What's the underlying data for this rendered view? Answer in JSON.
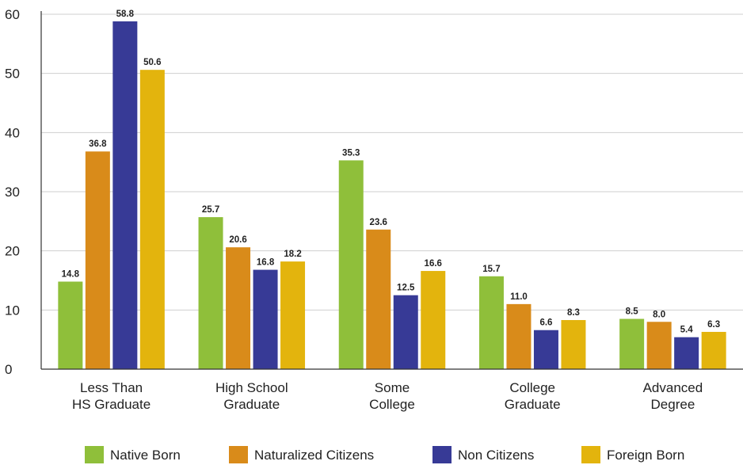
{
  "chart_data": {
    "type": "bar",
    "title": "",
    "xlabel": "",
    "ylabel": "",
    "ylim": [
      0,
      60
    ],
    "yticks": [
      "0",
      "10",
      "20",
      "30",
      "40",
      "50",
      "60"
    ],
    "grid": true,
    "legend_position": "bottom",
    "categories": [
      [
        "Less Than",
        "HS Graduate"
      ],
      [
        "High School",
        "Graduate"
      ],
      [
        "Some",
        "College"
      ],
      [
        "College",
        "Graduate"
      ],
      [
        "Advanced",
        "Degree"
      ]
    ],
    "series": [
      {
        "name": "Native Born",
        "color": "#8fbf3a",
        "values": [
          14.8,
          25.7,
          35.3,
          15.7,
          8.5
        ],
        "labels": [
          "14.8",
          "25.7",
          "35.3",
          "15.7",
          "8.5"
        ]
      },
      {
        "name": "Naturalized Citizens",
        "color": "#d98b1a",
        "values": [
          36.8,
          20.6,
          23.6,
          11.0,
          8.0
        ],
        "labels": [
          "36.8",
          "20.6",
          "23.6",
          "11.0",
          "8.0"
        ]
      },
      {
        "name": "Non Citizens",
        "color": "#373a96",
        "values": [
          58.8,
          16.8,
          12.5,
          6.6,
          5.4
        ],
        "labels": [
          "58.8",
          "16.8",
          "12.5",
          "6.6",
          "5.4"
        ]
      },
      {
        "name": "Foreign Born",
        "color": "#e3b40d",
        "values": [
          50.6,
          18.2,
          16.6,
          8.3,
          6.3
        ],
        "labels": [
          "50.6",
          "18.2",
          "16.6",
          "8.3",
          "6.3"
        ]
      }
    ]
  }
}
